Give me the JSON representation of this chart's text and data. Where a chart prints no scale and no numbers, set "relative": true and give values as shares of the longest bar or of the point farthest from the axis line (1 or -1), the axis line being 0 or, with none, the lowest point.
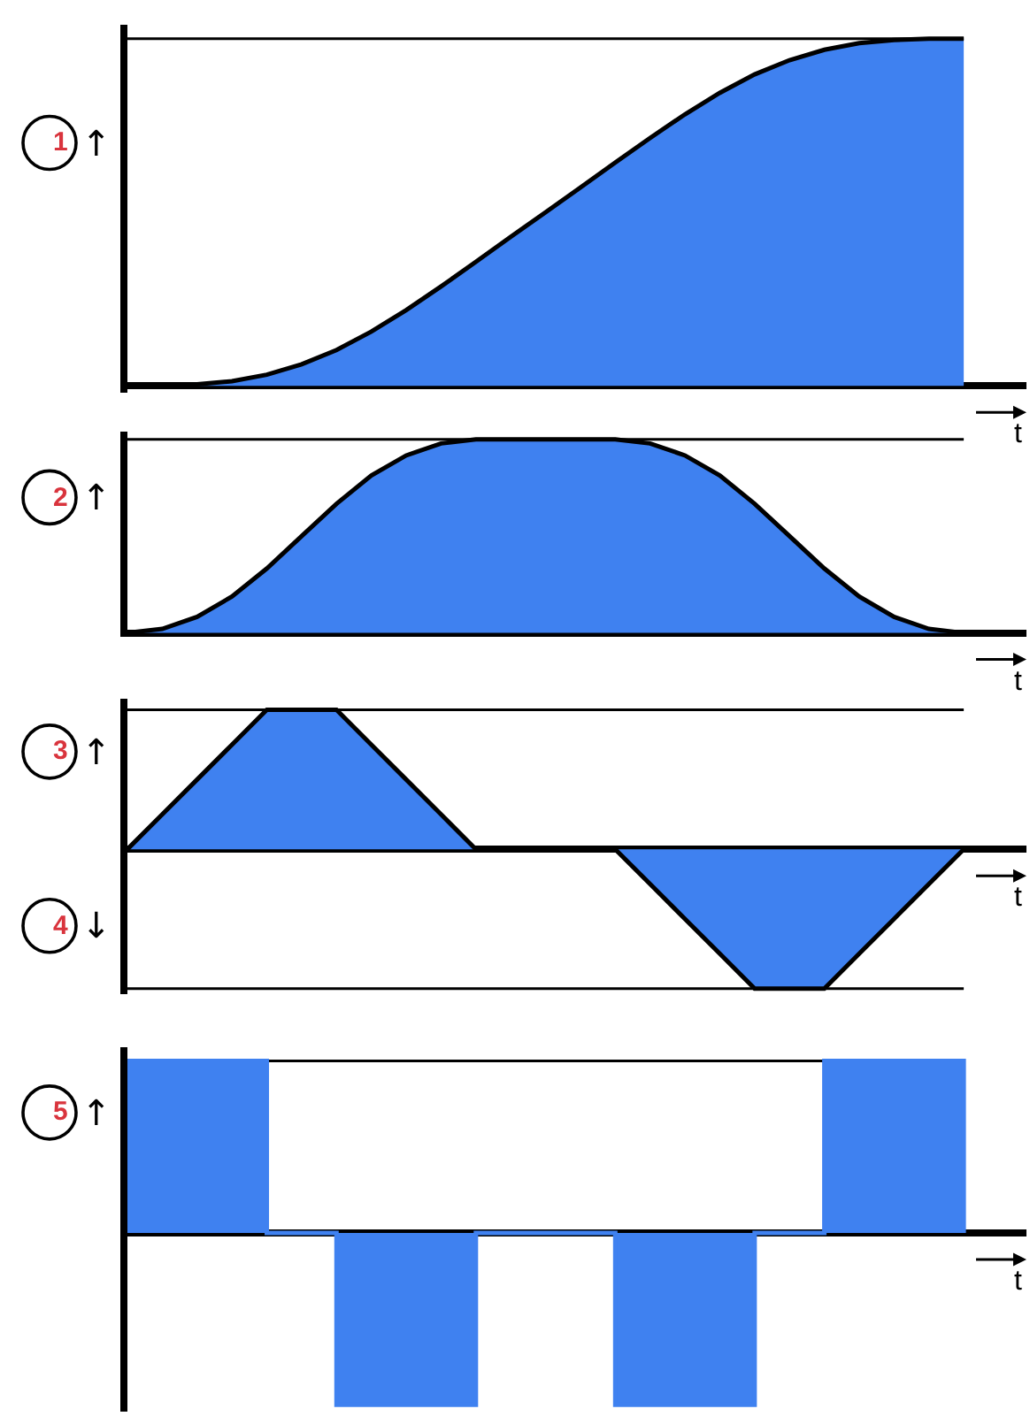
{
  "chart_data": [
    {
      "type": "area",
      "relative": true,
      "categories": [
        null,
        null,
        null,
        null,
        null,
        null,
        null,
        null,
        null,
        null,
        null,
        null,
        null,
        null,
        null,
        null,
        null,
        null,
        null,
        null,
        null,
        null,
        null,
        null,
        null
      ],
      "values": [
        0,
        0.0005,
        0.004,
        0.013,
        0.032,
        0.062,
        0.103,
        0.156,
        0.218,
        0.286,
        0.357,
        0.429,
        0.5,
        0.571,
        0.643,
        0.714,
        0.782,
        0.844,
        0.897,
        0.938,
        0.968,
        0.987,
        0.996,
        1,
        1
      ],
      "color": "#3f81f0",
      "xlabel": "t",
      "annotations": [
        "1",
        "↑"
      ],
      "ref_lines": [
        {
          "axis": "y",
          "value": 1
        }
      ]
    },
    {
      "type": "area",
      "relative": true,
      "categories": [
        null,
        null,
        null,
        null,
        null,
        null,
        null,
        null,
        null,
        null,
        null,
        null,
        null,
        null,
        null,
        null,
        null,
        null,
        null,
        null,
        null,
        null,
        null,
        null,
        null
      ],
      "values": [
        0,
        0.021,
        0.083,
        0.188,
        0.333,
        0.5,
        0.667,
        0.813,
        0.917,
        0.979,
        1,
        1,
        1,
        1,
        1,
        0.979,
        0.917,
        0.813,
        0.667,
        0.5,
        0.333,
        0.188,
        0.083,
        0.021,
        0
      ],
      "color": "#3f81f0",
      "xlabel": "t",
      "annotations": [
        "2",
        "↑"
      ],
      "ref_lines": [
        {
          "axis": "y",
          "value": 1
        }
      ]
    },
    {
      "type": "area",
      "relative": true,
      "categories": [
        null,
        null,
        null,
        null,
        null,
        null,
        null,
        null,
        null,
        null,
        null,
        null,
        null,
        null,
        null,
        null,
        null,
        null,
        null,
        null,
        null,
        null,
        null,
        null,
        null
      ],
      "values": [
        0,
        0.25,
        0.5,
        0.75,
        1,
        1,
        1,
        0.75,
        0.5,
        0.25,
        0,
        0,
        0,
        0,
        0,
        -0.25,
        -0.5,
        -0.75,
        -1,
        -1,
        -1,
        -0.75,
        -0.5,
        -0.25,
        0
      ],
      "color": "#3f81f0",
      "xlabel": "t",
      "annotations": [
        "3",
        "↑",
        "4",
        "↓"
      ],
      "ref_lines": [
        {
          "axis": "y",
          "value": 1
        },
        {
          "axis": "y",
          "value": -1
        }
      ]
    },
    {
      "type": "step",
      "relative": true,
      "categories": [
        null,
        null,
        null,
        null,
        null,
        null,
        null,
        null,
        null,
        null,
        null,
        null,
        null,
        null,
        null,
        null,
        null,
        null,
        null,
        null,
        null,
        null,
        null,
        null,
        null
      ],
      "values": [
        1,
        1,
        1,
        1,
        0,
        0,
        -1,
        -1,
        -1,
        -1,
        0,
        0,
        0,
        0,
        -1,
        -1,
        -1,
        -1,
        0,
        0,
        1,
        1,
        1,
        1,
        0
      ],
      "color": "#3f81f0",
      "xlabel": "t",
      "annotations": [
        "5",
        "↑"
      ],
      "ref_lines": [
        {
          "axis": "y",
          "value": 1
        }
      ]
    }
  ]
}
